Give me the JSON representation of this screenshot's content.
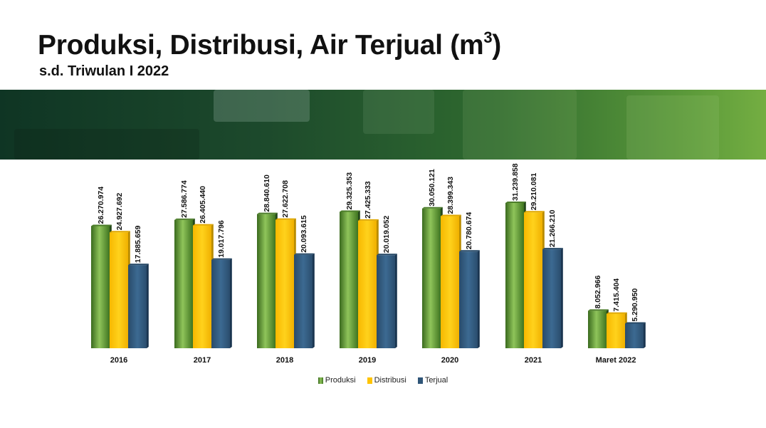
{
  "header": {
    "title": "Produksi, Distribusi, Air Terjual (m",
    "title_sup": "3",
    "title_close": ")",
    "subtitle": "s.d. Triwulan I 2022"
  },
  "colors": {
    "produksi": "#5b8f2e",
    "distribusi": "#ffc400",
    "terjual": "#2f5578"
  },
  "chart_data": {
    "type": "bar",
    "categories": [
      "2016",
      "2017",
      "2018",
      "2019",
      "2020",
      "2021",
      "Maret 2022"
    ],
    "series": [
      {
        "name": "Produksi",
        "values": [
          26270974,
          27586774,
          28840610,
          29325353,
          30050121,
          31239858,
          8052966
        ],
        "labels": [
          "26.270.974",
          "27.586.774",
          "28.840.610",
          "29.325.353",
          "30.050.121",
          "31.239.858",
          "8.052.966"
        ]
      },
      {
        "name": "Distribusi",
        "values": [
          24927692,
          26405440,
          27622708,
          27425333,
          28399343,
          29210081,
          7415404
        ],
        "labels": [
          "24.927.692",
          "26.405.440",
          "27.622.708",
          "27.425.333",
          "28.399.343",
          "29.210.081",
          "7.415.404"
        ]
      },
      {
        "name": "Terjual",
        "values": [
          17885659,
          19017796,
          20093615,
          20019052,
          20780674,
          21266210,
          5290950
        ],
        "labels": [
          "17.885.659",
          "19.017.796",
          "20.093.615",
          "20.019.052",
          "20.780.674",
          "21.266.210",
          "5.290.950"
        ]
      }
    ],
    "ylim": [
      0,
      31239858
    ],
    "grid": false,
    "legend_position": "bottom"
  }
}
